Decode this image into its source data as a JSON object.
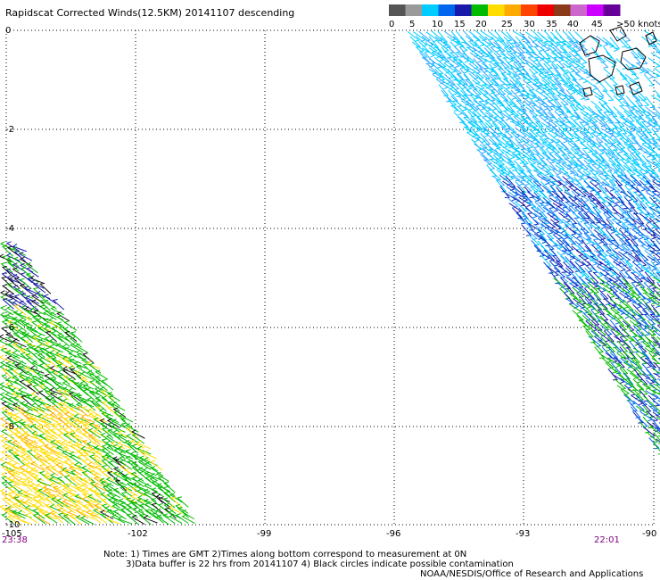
{
  "title": "Rapidscat Corrected Winds(12.5KM) 20141107 descending",
  "colorbar": {
    "ticks": [
      "0",
      "5",
      "10",
      "15",
      "20",
      "25",
      "30",
      "35",
      "40",
      "45",
      ">50 knots"
    ],
    "colors": [
      "#555555",
      "#9a9a9a",
      "#00ccff",
      "#0066ee",
      "#1a1aaa",
      "#00bb00",
      "#ffdd00",
      "#ffaa00",
      "#ff4400",
      "#ee0000",
      "#8b3a1a",
      "#cc66cc",
      "#cc00ff",
      "#660099"
    ]
  },
  "map": {
    "x_ticks": [
      "-105",
      "-102",
      "-99",
      "-96",
      "-93",
      "-90"
    ],
    "y_ticks": [
      "0",
      "-2",
      "-4",
      "-6",
      "-8",
      "-10"
    ],
    "x_range": [
      -105,
      -90
    ],
    "y_range": [
      -10,
      0
    ],
    "grid": true,
    "land": "Galapagos Islands (top-right)"
  },
  "swaths": {
    "left_time": "23:38",
    "right_time": "22:01"
  },
  "notes": {
    "line1": "Note: 1) Times are GMT 2)Times along bottom correspond to measurement at 0N",
    "line2": "3)Data buffer is 22 hrs from 20141107 4) Black circles indicate possible contamination",
    "credit": "NOAA/NESDIS/Office of Research and Applications"
  }
}
